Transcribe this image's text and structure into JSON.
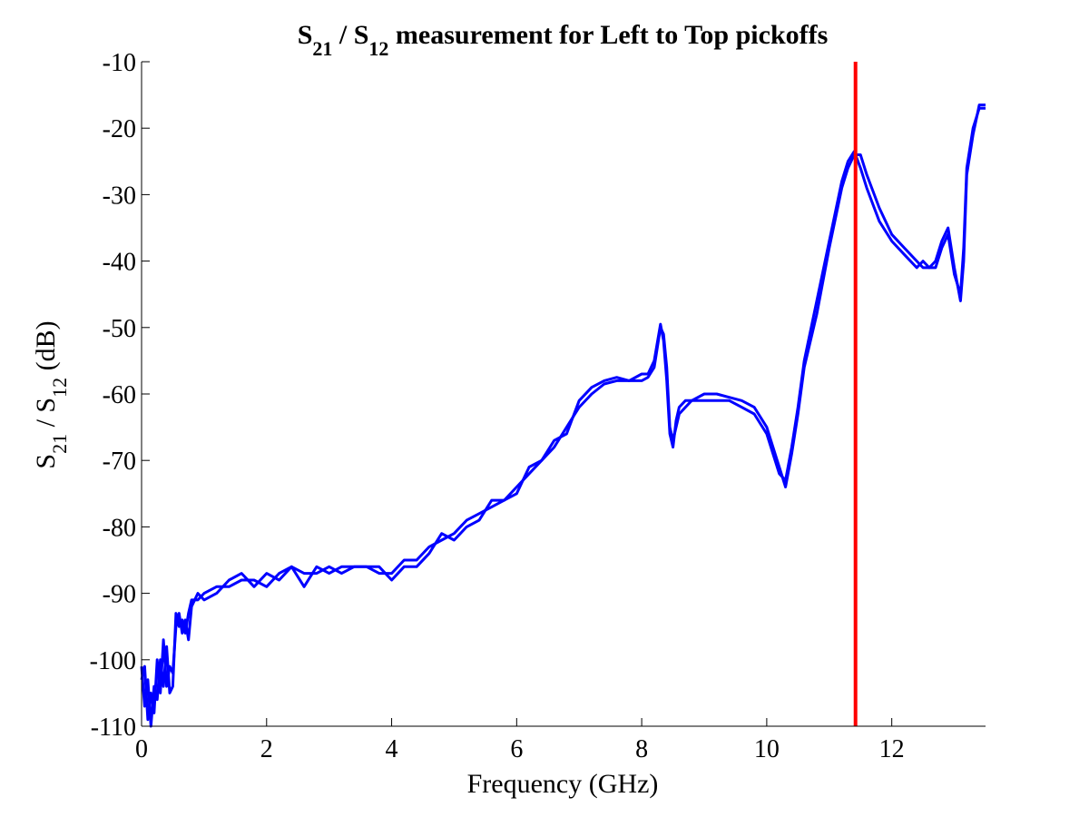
{
  "chart_data": {
    "type": "line",
    "title": {
      "parts": [
        {
          "text": "S"
        },
        {
          "text": "21",
          "sub": true
        },
        {
          "text": " / S"
        },
        {
          "text": "12",
          "sub": true
        },
        {
          "text": " measurement for Left to Top pickoffs"
        }
      ]
    },
    "xlabel": "Frequency (GHz)",
    "ylabel": {
      "parts": [
        {
          "text": "S"
        },
        {
          "text": "21",
          "sub": true
        },
        {
          "text": " / S"
        },
        {
          "text": "12",
          "sub": true
        },
        {
          "text": " (dB)"
        }
      ]
    },
    "xlim": [
      0,
      13.5
    ],
    "ylim": [
      -110,
      -10
    ],
    "xticks": [
      0,
      2,
      4,
      6,
      8,
      10,
      12
    ],
    "xtick_labels": [
      "0",
      "2",
      "4",
      "6",
      "8",
      "10",
      "12"
    ],
    "yticks": [
      -10,
      -20,
      -30,
      -40,
      -50,
      -60,
      -70,
      -80,
      -90,
      -100,
      -110
    ],
    "ytick_labels": [
      "-10",
      "-20",
      "-30",
      "-40",
      "-50",
      "-60",
      "-70",
      "-80",
      "-90",
      "-100",
      "-110"
    ],
    "grid": false,
    "marker_line": {
      "x": 11.42,
      "color": "#ff0000"
    },
    "series": [
      {
        "color": "#0000ff",
        "x": [
          0.0,
          0.05,
          0.1,
          0.15,
          0.2,
          0.25,
          0.3,
          0.35,
          0.4,
          0.45,
          0.5,
          0.55,
          0.6,
          0.65,
          0.7,
          0.75,
          0.8,
          0.9,
          1.0,
          1.2,
          1.4,
          1.6,
          1.8,
          2.0,
          2.2,
          2.4,
          2.6,
          2.8,
          3.0,
          3.2,
          3.4,
          3.6,
          3.8,
          4.0,
          4.2,
          4.4,
          4.6,
          4.8,
          5.0,
          5.2,
          5.4,
          5.6,
          5.8,
          6.0,
          6.2,
          6.4,
          6.6,
          6.8,
          7.0,
          7.2,
          7.4,
          7.6,
          7.8,
          8.0,
          8.1,
          8.2,
          8.3,
          8.35,
          8.4,
          8.45,
          8.5,
          8.55,
          8.6,
          8.7,
          8.8,
          9.0,
          9.2,
          9.4,
          9.6,
          9.8,
          10.0,
          10.1,
          10.2,
          10.3,
          10.4,
          10.5,
          10.6,
          10.8,
          11.0,
          11.2,
          11.3,
          11.4,
          11.5,
          11.6,
          11.8,
          12.0,
          12.2,
          12.4,
          12.5,
          12.6,
          12.7,
          12.8,
          12.9,
          13.0,
          13.1,
          13.15,
          13.2,
          13.3,
          13.4,
          13.5
        ],
        "y": [
          -101,
          -107,
          -103,
          -110,
          -104,
          -106,
          -100,
          -104,
          -98,
          -105,
          -104,
          -93,
          -95,
          -94,
          -96,
          -93,
          -91,
          -91,
          -90,
          -89,
          -89,
          -88,
          -88,
          -89,
          -87,
          -86,
          -89,
          -86,
          -87,
          -86,
          -86,
          -86,
          -87,
          -87,
          -85,
          -85,
          -83,
          -82,
          -81,
          -79,
          -78,
          -77,
          -76,
          -74,
          -72,
          -70,
          -68,
          -65,
          -62,
          -60,
          -58.5,
          -58,
          -58,
          -58,
          -57.5,
          -56,
          -50,
          -51,
          -56,
          -65,
          -67,
          -65,
          -63,
          -62,
          -61,
          -61,
          -61,
          -61,
          -62,
          -63,
          -66,
          -69,
          -72,
          -73,
          -68,
          -62,
          -55,
          -46,
          -37,
          -28,
          -25,
          -23.5,
          -26,
          -29,
          -34,
          -37,
          -39,
          -41,
          -40,
          -41,
          -41,
          -38,
          -36,
          -42,
          -45,
          -38,
          -26,
          -20,
          -17,
          -17
        ]
      },
      {
        "color": "#0000ff",
        "x": [
          0.0,
          0.05,
          0.1,
          0.15,
          0.2,
          0.25,
          0.3,
          0.35,
          0.4,
          0.45,
          0.5,
          0.55,
          0.6,
          0.65,
          0.7,
          0.75,
          0.8,
          0.9,
          1.0,
          1.2,
          1.4,
          1.6,
          1.8,
          2.0,
          2.2,
          2.4,
          2.6,
          2.8,
          3.0,
          3.2,
          3.4,
          3.6,
          3.8,
          4.0,
          4.2,
          4.4,
          4.6,
          4.8,
          5.0,
          5.2,
          5.4,
          5.6,
          5.8,
          6.0,
          6.2,
          6.4,
          6.6,
          6.8,
          7.0,
          7.2,
          7.4,
          7.6,
          7.8,
          8.0,
          8.1,
          8.2,
          8.3,
          8.35,
          8.4,
          8.45,
          8.5,
          8.55,
          8.6,
          8.7,
          8.8,
          9.0,
          9.2,
          9.4,
          9.6,
          9.8,
          10.0,
          10.1,
          10.2,
          10.3,
          10.4,
          10.5,
          10.6,
          10.8,
          11.0,
          11.2,
          11.3,
          11.4,
          11.5,
          11.6,
          11.8,
          12.0,
          12.2,
          12.4,
          12.5,
          12.6,
          12.7,
          12.8,
          12.9,
          13.0,
          13.1,
          13.15,
          13.2,
          13.3,
          13.4,
          13.5
        ],
        "y": [
          -103,
          -101,
          -109,
          -105,
          -108,
          -100,
          -105,
          -97,
          -104,
          -101,
          -102,
          -95,
          -93,
          -96,
          -94,
          -97,
          -92,
          -90,
          -91,
          -90,
          -88,
          -87,
          -89,
          -87,
          -88,
          -86,
          -87,
          -87,
          -86,
          -87,
          -86,
          -86,
          -86,
          -88,
          -86,
          -86,
          -84,
          -81,
          -82,
          -80,
          -79,
          -76,
          -76,
          -75,
          -71,
          -70,
          -67,
          -66,
          -61,
          -59,
          -58,
          -57.5,
          -58,
          -57,
          -57,
          -55,
          -49.5,
          -52,
          -58,
          -66,
          -68,
          -64,
          -62,
          -61,
          -61,
          -60,
          -60,
          -60.5,
          -61,
          -62,
          -65,
          -68,
          -71,
          -74,
          -69,
          -63,
          -56,
          -48,
          -38,
          -29,
          -26,
          -24,
          -24,
          -27,
          -32,
          -36,
          -38,
          -40,
          -41,
          -41,
          -40,
          -37,
          -35,
          -41,
          -46,
          -40,
          -27,
          -21,
          -16.5,
          -16.5
        ]
      }
    ]
  }
}
